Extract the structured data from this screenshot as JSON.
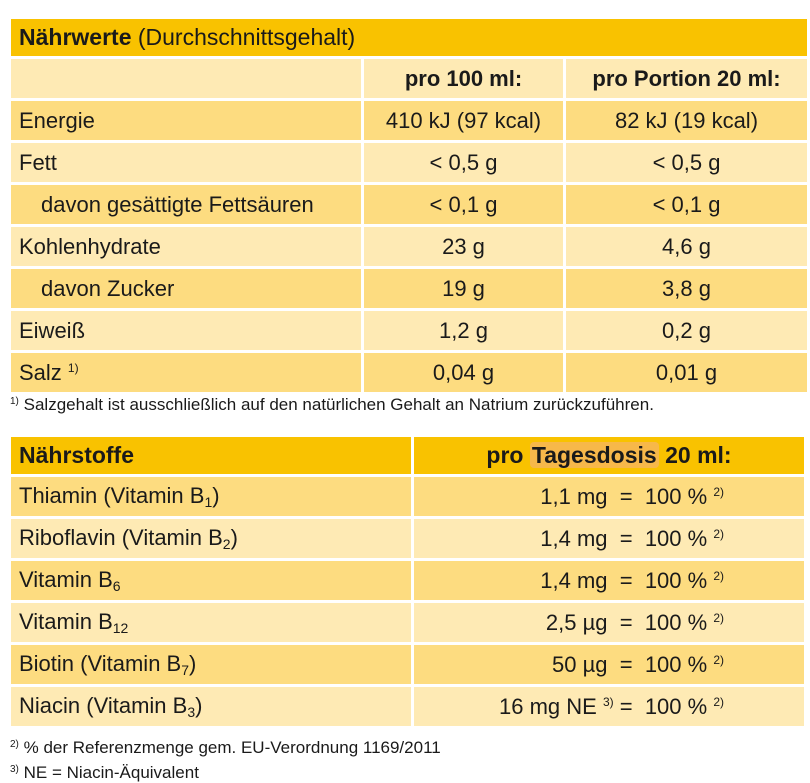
{
  "table1": {
    "title": "Nährwerte",
    "subtitle": "(Durchschnittsgehalt)",
    "col1": "pro 100 ml:",
    "col2": "pro Portion 20 ml:",
    "rows": [
      {
        "label": "Energie",
        "v1": "410 kJ (97 kcal)",
        "v2": "82 kJ (19 kcal)"
      },
      {
        "label": "Fett",
        "v1": "< 0,5 g",
        "v2": "< 0,5 g"
      },
      {
        "label": "davon gesättigte Fettsäuren",
        "v1": "< 0,1 g",
        "v2": "< 0,1 g"
      },
      {
        "label": "Kohlenhydrate",
        "v1": "23 g",
        "v2": "4,6 g"
      },
      {
        "label": "davon Zucker",
        "v1": "19 g",
        "v2": "3,8 g"
      },
      {
        "label": "Eiweiß",
        "v1": "1,2 g",
        "v2": "0,2 g"
      },
      {
        "label": "Salz",
        "sup": "1)",
        "v1": "0,04 g",
        "v2": "0,01 g"
      }
    ],
    "footnote_mark": "1)",
    "footnote": "Salzgehalt ist ausschließlich auf den natürlichen Gehalt an Natrium zurückzuführen."
  },
  "table2": {
    "title": "Nährstoffe",
    "col_prefix": "pro",
    "col_highlight": "Tagesdosis",
    "col_suffix": "20 ml:",
    "percent_mark": "2)",
    "rows": [
      {
        "label": "Thiamin (Vitamin B",
        "sub": "1",
        "close": ")",
        "value": "1,1 mg  =  100 %"
      },
      {
        "label": "Riboflavin (Vitamin B",
        "sub": "2",
        "close": ")",
        "value": "1,4 mg  =  100 %"
      },
      {
        "label": "Vitamin B",
        "sub": "6",
        "close": "",
        "value": "1,4 mg  =  100 %"
      },
      {
        "label": "Vitamin B",
        "sub": "12",
        "close": "",
        "value": "2,5 µg  =  100 %"
      },
      {
        "label": "Biotin (Vitamin B",
        "sub": "7",
        "close": ")",
        "value": "50 µg  =  100 %"
      },
      {
        "label": "Niacin (Vitamin B",
        "sub": "3",
        "close": ")",
        "value_pre": "16 mg NE",
        "value_sup": "3)",
        "value_post": "=  100 %"
      }
    ],
    "footnote2_mark": "2)",
    "footnote2": "% der Referenzmenge gem. EU-Verordnung 1169/2011",
    "footnote3_mark": "3)",
    "footnote3": "NE = Niacin-Äquivalent"
  }
}
